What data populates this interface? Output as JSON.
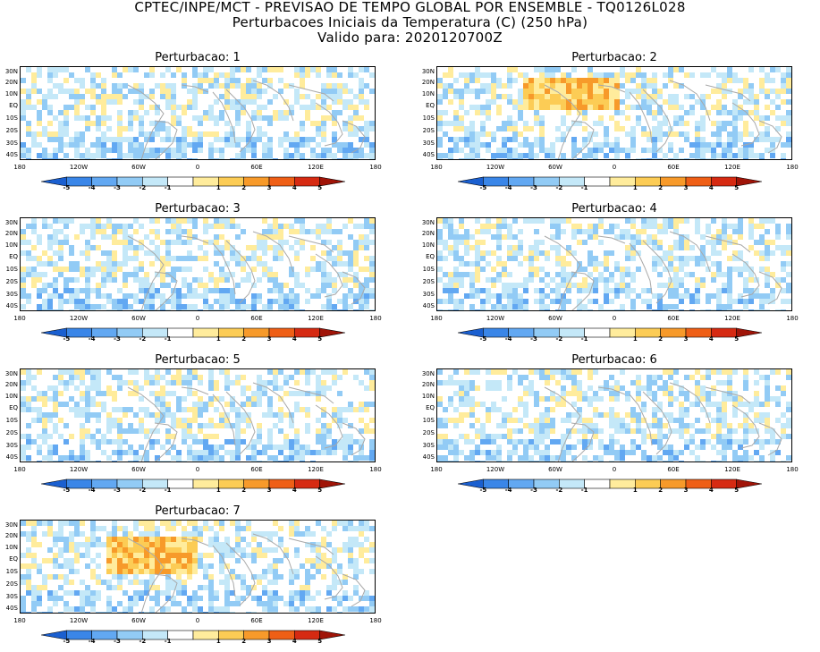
{
  "header": {
    "line1": "CPTEC/INPE/MCT - PREVISAO DE TEMPO GLOBAL POR ENSEMBLE - TQ0126L028",
    "line2": "Perturbacoes Iniciais da Temperatura (C) (250 hPa)",
    "line3": "Valido para: 2020120700Z"
  },
  "latitude_labels": [
    "30N",
    "20N",
    "10N",
    "EQ",
    "10S",
    "20S",
    "30S",
    "40S"
  ],
  "longitude_labels": [
    "180",
    "120W",
    "60W",
    "0",
    "60E",
    "120E",
    "180"
  ],
  "colorbar": {
    "labels": [
      "-5",
      "-4",
      "-3",
      "-2",
      "-1",
      "1",
      "2",
      "3",
      "4",
      "5"
    ],
    "colors": [
      "#1a5fd0",
      "#3a86e8",
      "#62a8f2",
      "#92cbf5",
      "#c4e8f8",
      "#ffffff",
      "#ffec9c",
      "#fccc55",
      "#f79a2a",
      "#ef5f16",
      "#d62a12",
      "#a01408"
    ]
  },
  "panels": [
    {
      "title": "Perturbacao: 1"
    },
    {
      "title": "Perturbacao: 2"
    },
    {
      "title": "Perturbacao: 3"
    },
    {
      "title": "Perturbacao: 4"
    },
    {
      "title": "Perturbacao: 5"
    },
    {
      "title": "Perturbacao: 6"
    },
    {
      "title": "Perturbacao: 7"
    }
  ]
}
